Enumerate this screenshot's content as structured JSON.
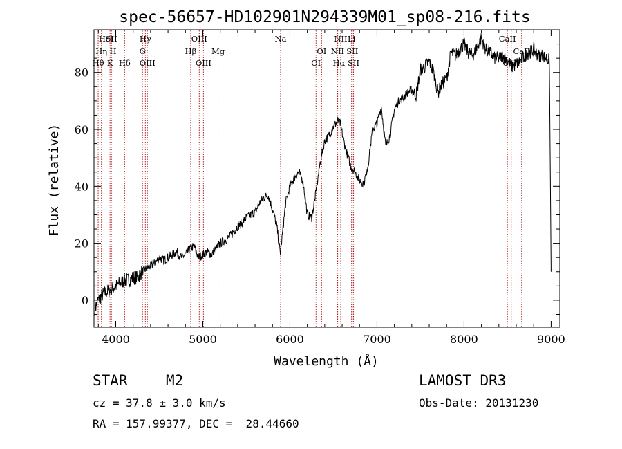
{
  "chart_data": {
    "type": "line",
    "title": "spec-56657-HD102901N294339M01_sp08-216.fits",
    "xlabel": "Wavelength (Å)",
    "ylabel": "Flux (relative)",
    "xlim": [
      3750,
      9100
    ],
    "ylim": [
      -9.5,
      95
    ],
    "xticks": [
      4000,
      5000,
      6000,
      7000,
      8000,
      9000
    ],
    "yticks": [
      0,
      20,
      40,
      60,
      80
    ],
    "series": [
      {
        "name": "spectrum",
        "x": [
          3760,
          3800,
          3850,
          3900,
          3950,
          4000,
          4050,
          4100,
          4150,
          4200,
          4250,
          4300,
          4350,
          4400,
          4450,
          4500,
          4550,
          4600,
          4650,
          4700,
          4750,
          4800,
          4850,
          4900,
          4950,
          5000,
          5050,
          5100,
          5150,
          5200,
          5250,
          5300,
          5350,
          5400,
          5450,
          5500,
          5550,
          5600,
          5650,
          5700,
          5750,
          5800,
          5850,
          5890,
          5920,
          5950,
          6000,
          6050,
          6100,
          6150,
          6200,
          6250,
          6300,
          6350,
          6400,
          6450,
          6500,
          6550,
          6580,
          6610,
          6650,
          6700,
          6750,
          6800,
          6850,
          6900,
          6950,
          7000,
          7050,
          7100,
          7150,
          7200,
          7250,
          7300,
          7350,
          7400,
          7450,
          7500,
          7550,
          7600,
          7650,
          7700,
          7750,
          7800,
          7850,
          7900,
          7950,
          8000,
          8050,
          8100,
          8150,
          8200,
          8250,
          8300,
          8350,
          8400,
          8450,
          8500,
          8550,
          8600,
          8650,
          8700,
          8750,
          8800,
          8850,
          8900,
          8950,
          8980,
          9000
        ],
        "values": [
          -3,
          0,
          2,
          3,
          4,
          5,
          6,
          7,
          7,
          8,
          8,
          10,
          11,
          12,
          13,
          15,
          14,
          15,
          16,
          17,
          15,
          16,
          18,
          19,
          15,
          16,
          17,
          16,
          18,
          20,
          21,
          22,
          24,
          26,
          27,
          29,
          30,
          31,
          34,
          36,
          37,
          32,
          26,
          16,
          25,
          34,
          40,
          43,
          45,
          42,
          30,
          29,
          38,
          49,
          56,
          58,
          61,
          63,
          62,
          57,
          52,
          47,
          45,
          42,
          41,
          48,
          60,
          62,
          68,
          54,
          58,
          67,
          70,
          71,
          73,
          74,
          72,
          81,
          82,
          84,
          80,
          73,
          76,
          78,
          87,
          86,
          88,
          90,
          87,
          86,
          89,
          92,
          88,
          87,
          85,
          85,
          86,
          84,
          82,
          83,
          84,
          86,
          87,
          88,
          86,
          86,
          85,
          84,
          10
        ]
      }
    ],
    "line_markers": [
      {
        "label": "HeI",
        "wavelength": 3889,
        "row": 0
      },
      {
        "label": "SII",
        "wavelength": 3950,
        "row": 0
      },
      {
        "label": "Hη",
        "wavelength": 3835,
        "row": 1
      },
      {
        "label": "H",
        "wavelength": 3968,
        "row": 1
      },
      {
        "label": "Hθ",
        "wavelength": 3798,
        "row": 2
      },
      {
        "label": "K",
        "wavelength": 3934,
        "row": 2
      },
      {
        "label": "Hδ",
        "wavelength": 4102,
        "row": 2
      },
      {
        "label": "Hγ",
        "wavelength": 4340,
        "row": 0
      },
      {
        "label": "G",
        "wavelength": 4307,
        "row": 1
      },
      {
        "label": "OIII",
        "wavelength": 4363,
        "row": 2
      },
      {
        "label": "OIII",
        "wavelength": 4959,
        "row": 0
      },
      {
        "label": "Hβ",
        "wavelength": 4861,
        "row": 1
      },
      {
        "label": "OIII",
        "wavelength": 5007,
        "row": 2
      },
      {
        "label": "Mg",
        "wavelength": 5175,
        "row": 1
      },
      {
        "label": "Na",
        "wavelength": 5893,
        "row": 0
      },
      {
        "label": "OI",
        "wavelength": 6364,
        "row": 1
      },
      {
        "label": "OI",
        "wavelength": 6300,
        "row": 2
      },
      {
        "label": "NII",
        "wavelength": 6584,
        "row": 0
      },
      {
        "label": "Li",
        "wavelength": 6708,
        "row": 0
      },
      {
        "label": "NII",
        "wavelength": 6548,
        "row": 1
      },
      {
        "label": "SII",
        "wavelength": 6717,
        "row": 1
      },
      {
        "label": "Hα",
        "wavelength": 6563,
        "row": 2
      },
      {
        "label": "SII",
        "wavelength": 6731,
        "row": 2
      },
      {
        "label": "CaII",
        "wavelength": 8498,
        "row": 0
      },
      {
        "label": "CaII",
        "wavelength": 8662,
        "row": 1
      },
      {
        "label": "CaII",
        "wavelength": 8542,
        "row": 2
      }
    ]
  },
  "info": {
    "class_label": "STAR",
    "subclass": "M2",
    "survey": "LAMOST DR3",
    "redshift": "cz = 37.8 ± 3.0 km/s",
    "obs_date": "Obs-Date: 20131230",
    "coords": "RA = 157.99377, DEC =  28.44660"
  },
  "colors": {
    "spectrum": "#000000",
    "marker": "#b22222",
    "axis": "#000000"
  }
}
